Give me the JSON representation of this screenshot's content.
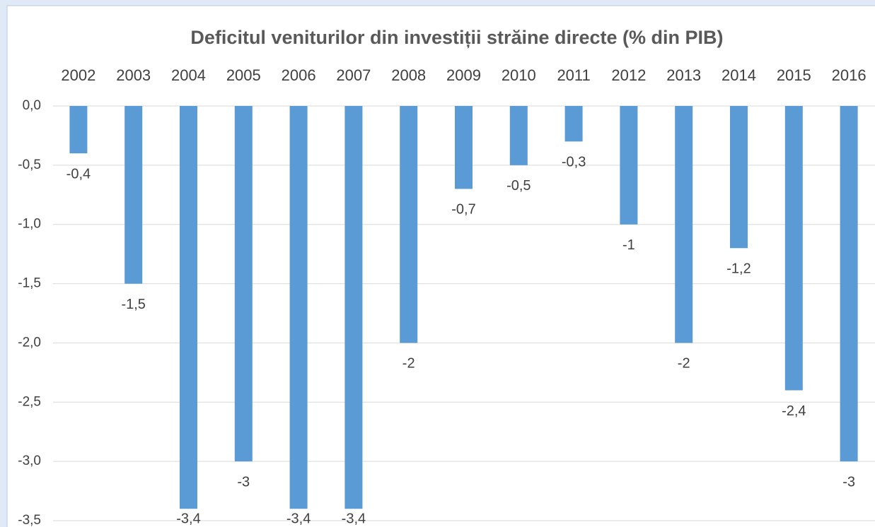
{
  "chart_data": {
    "type": "bar",
    "title": "Deficitul veniturilor din investiții străine directe (% din PIB)",
    "categories": [
      "2002",
      "2003",
      "2004",
      "2005",
      "2006",
      "2007",
      "2008",
      "2009",
      "2010",
      "2011",
      "2012",
      "2013",
      "2014",
      "2015",
      "2016"
    ],
    "values": [
      -0.4,
      -1.5,
      -3.4,
      -3,
      -3.4,
      -3.4,
      -2,
      -0.7,
      -0.5,
      -0.3,
      -1,
      -2,
      -1.2,
      -2.4,
      -3
    ],
    "value_labels": [
      "-0,4",
      "-1,5",
      "-3,4",
      "-3",
      "-3,4",
      "-3,4",
      "-2",
      "-0,7",
      "-0,5",
      "-0,3",
      "-1",
      "-2",
      "-1,2",
      "-2,4",
      "-3"
    ],
    "color": "#5b9bd5",
    "ylim": [
      -3.5,
      0
    ],
    "yticks": [
      {
        "value": 0,
        "label": "0,0"
      },
      {
        "value": -0.5,
        "label": "-0,5"
      },
      {
        "value": -1,
        "label": "-1,0"
      },
      {
        "value": -1.5,
        "label": "-1,5"
      },
      {
        "value": -2,
        "label": "-2,0"
      },
      {
        "value": -2.5,
        "label": "-2,5"
      },
      {
        "value": -3,
        "label": "-3,0"
      },
      {
        "value": -3.5,
        "label": "-3,5"
      }
    ],
    "grid": true
  }
}
